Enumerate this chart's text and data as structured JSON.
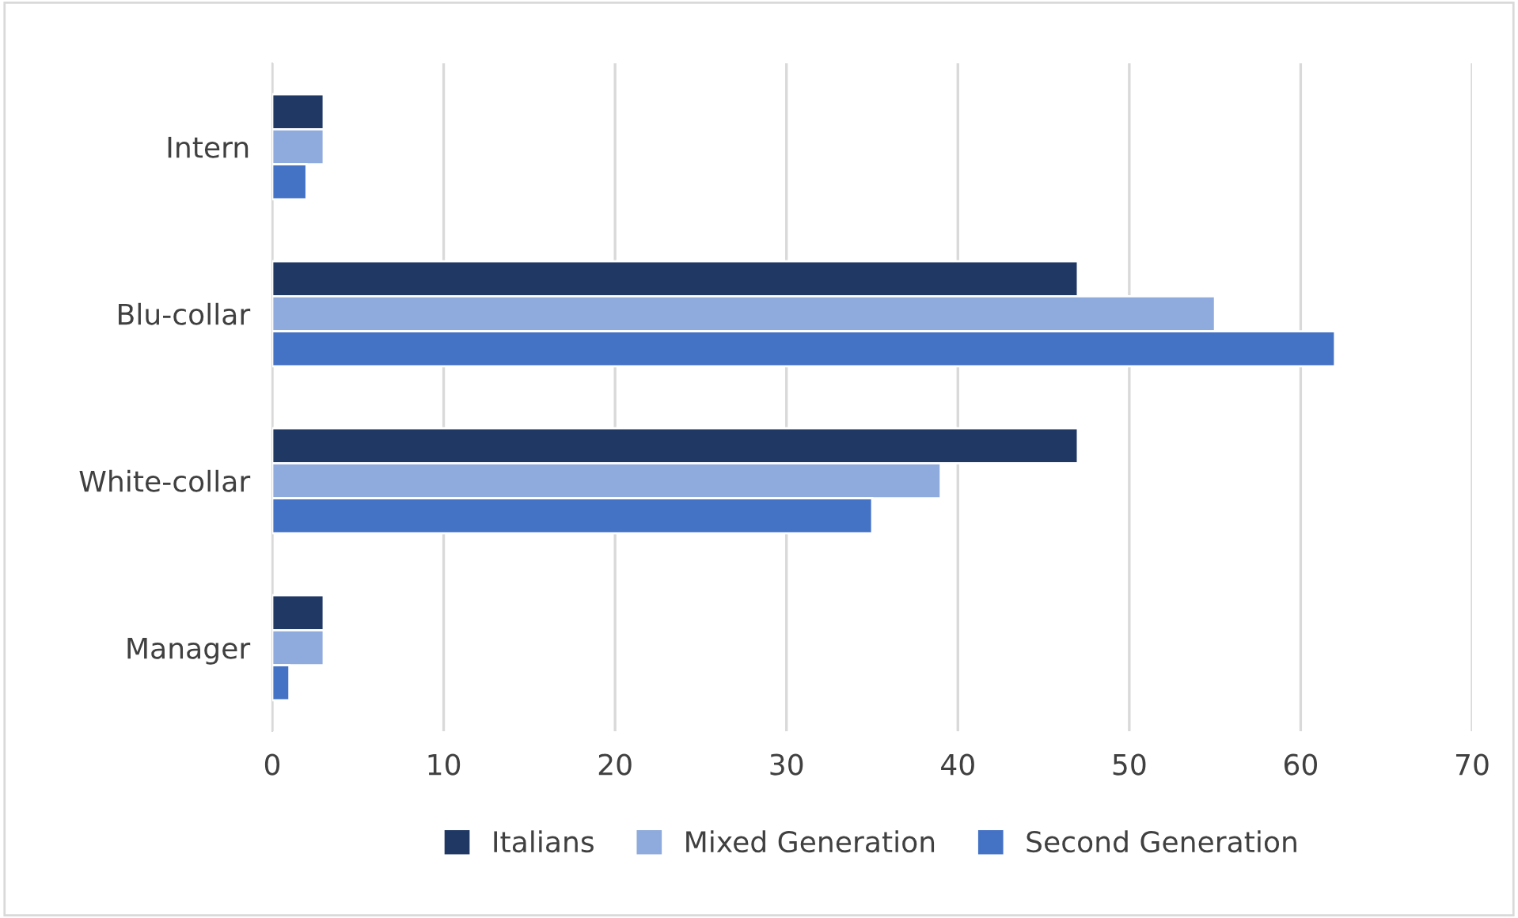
{
  "chart_data": {
    "type": "bar",
    "orientation": "horizontal",
    "categories": [
      "Intern",
      "Blu-collar",
      "White-collar",
      "Manager"
    ],
    "series": [
      {
        "name": "Italians",
        "color": "#1f3864",
        "values": [
          3,
          47,
          47,
          3
        ]
      },
      {
        "name": "Mixed Generation",
        "color": "#8faadc",
        "values": [
          3,
          55,
          39,
          3
        ]
      },
      {
        "name": "Second Generation",
        "color": "#4472c4",
        "values": [
          2,
          62,
          35,
          1
        ]
      }
    ],
    "xlim": [
      0,
      70
    ],
    "xticks": [
      0,
      10,
      20,
      30,
      40,
      50,
      60,
      70
    ],
    "grid": "x",
    "legend": "bottom"
  }
}
